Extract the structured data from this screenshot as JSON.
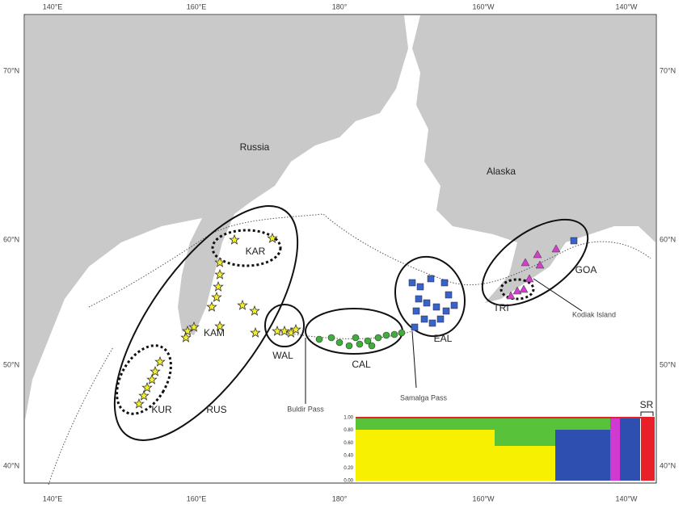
{
  "axes": {
    "top": [
      "140°E",
      "160°E",
      "180°",
      "160°W",
      "140°W"
    ],
    "bottom": [
      "140°E",
      "160°E",
      "180°",
      "160°W",
      "140°W"
    ],
    "left": [
      "70°N",
      "60°N",
      "50°N",
      "40°N"
    ],
    "right": [
      "70°N",
      "60°N",
      "50°N",
      "40°N"
    ]
  },
  "labels": {
    "russia": "Russia",
    "alaska": "Alaska",
    "kar": "KAR",
    "kam": "KAM",
    "kur": "KUR",
    "rus": "RUS",
    "wal": "WAL",
    "cal": "CAL",
    "eal": "EAL",
    "tri": "TRI",
    "goa": "GOA",
    "buldir": "Buldir Pass",
    "samalga": "Samalga Pass",
    "kodiak": "Kodiak Island"
  },
  "inset": {
    "yticks": [
      "1.00",
      "0.80",
      "0.60",
      "0.40",
      "0.20",
      "0.00"
    ],
    "sr": "SR"
  }
}
